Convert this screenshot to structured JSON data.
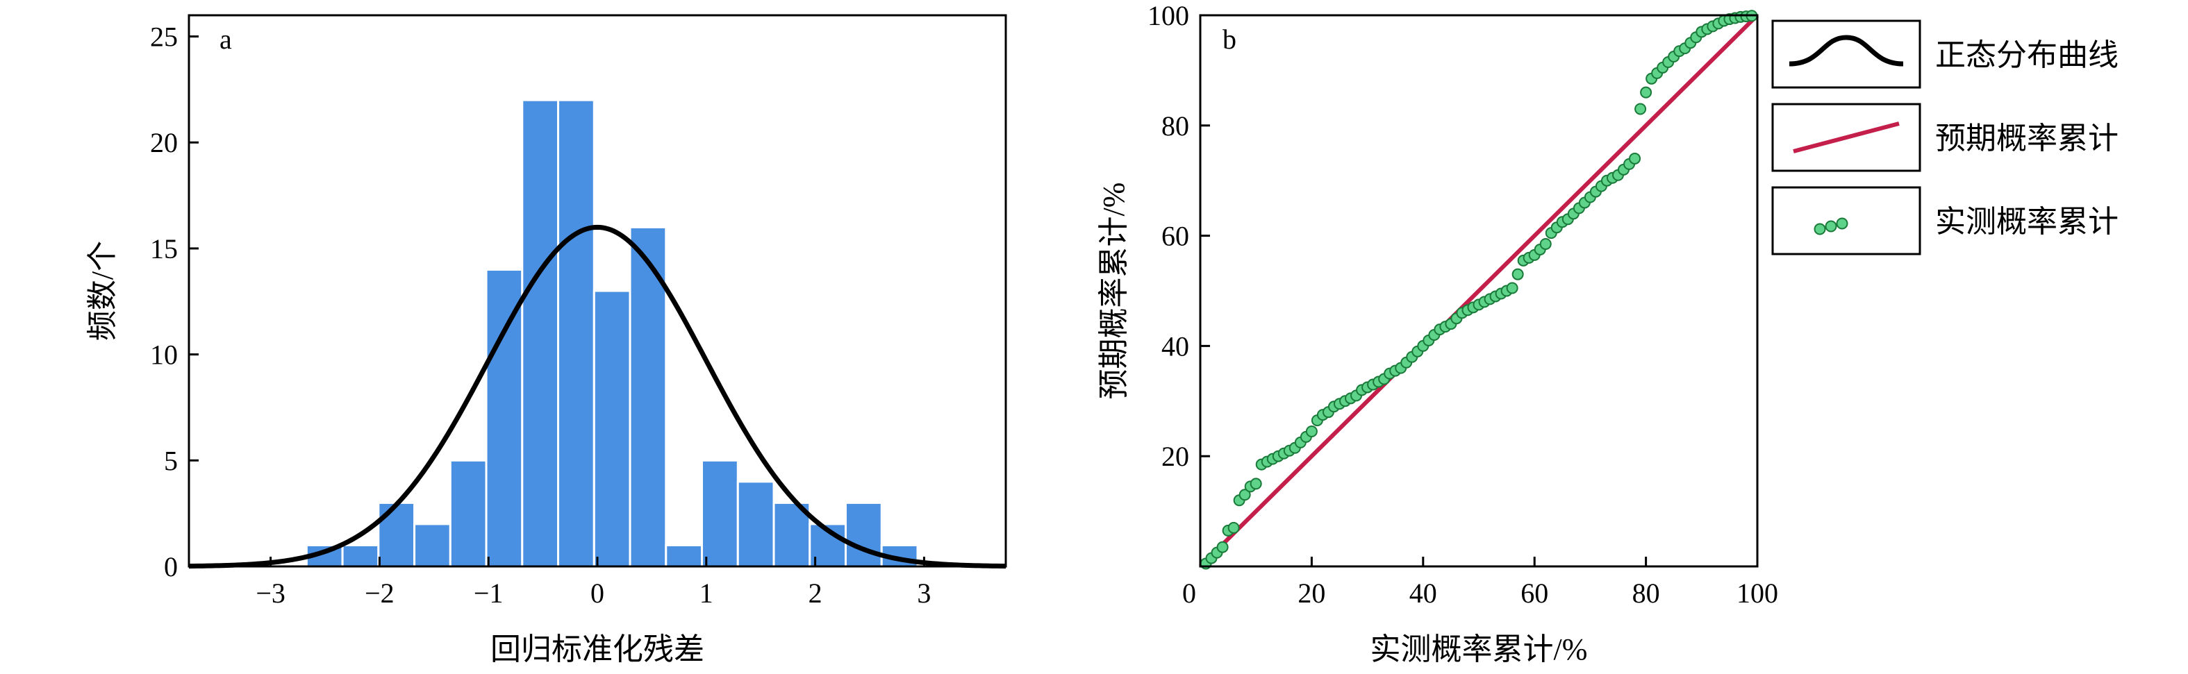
{
  "chart_data": [
    {
      "panel": "a",
      "type": "bar",
      "title": "",
      "xlabel": "回归标准化残差",
      "ylabel": "频数/个",
      "xlim": [
        -3.75,
        3.75
      ],
      "ylim": [
        0,
        26
      ],
      "xticks": [
        -3,
        -2,
        -1,
        0,
        1,
        2,
        3
      ],
      "xtick_labels": [
        "−3",
        "−2",
        "−1",
        "0",
        "1",
        "2",
        "3"
      ],
      "yticks": [
        0,
        5,
        10,
        15,
        20,
        25
      ],
      "ytick_labels": [
        "0",
        "5",
        "10",
        "15",
        "20",
        "25"
      ],
      "bin_width": 0.33,
      "bin_starts": [
        -2.67,
        -2.34,
        -2.01,
        -1.68,
        -1.35,
        -1.02,
        -0.69,
        -0.36,
        -0.03,
        0.3,
        0.63,
        0.96,
        1.29,
        1.62,
        1.95,
        2.28,
        2.61
      ],
      "values": [
        1,
        1,
        3,
        2,
        5,
        14,
        22,
        22,
        13,
        16,
        1,
        5,
        4,
        3,
        2,
        3,
        1
      ],
      "bar_color": "#4a90e2",
      "curve": {
        "type": "normal",
        "mean": 0,
        "sd": 1,
        "peak": 16,
        "color": "#000000"
      },
      "grid": false
    },
    {
      "panel": "b",
      "type": "scatter",
      "title": "",
      "xlabel": "实测概率累计/%",
      "ylabel": "预期概率累计/%",
      "xlim": [
        0,
        100
      ],
      "ylim": [
        0,
        100
      ],
      "xticks": [
        0,
        20,
        40,
        60,
        80,
        100
      ],
      "xtick_labels": [
        "0",
        "20",
        "40",
        "60",
        "80",
        "100"
      ],
      "yticks": [
        20,
        40,
        60,
        80,
        100
      ],
      "ytick_labels": [
        "20",
        "40",
        "60",
        "80",
        "100"
      ],
      "reference_line": {
        "x": [
          0,
          100
        ],
        "y": [
          0,
          100
        ],
        "color": "#c41e4a"
      },
      "point_color": "#5fd38a",
      "point_edge_color": "#1a7a3a",
      "points": {
        "x": [
          1,
          2,
          3,
          4,
          5,
          6,
          7,
          8,
          9,
          10,
          11,
          12,
          13,
          14,
          15,
          16,
          17,
          18,
          19,
          20,
          21,
          22,
          23,
          24,
          25,
          26,
          27,
          28,
          29,
          30,
          31,
          32,
          33,
          34,
          35,
          36,
          37,
          38,
          39,
          40,
          41,
          42,
          43,
          44,
          45,
          46,
          47,
          48,
          49,
          50,
          51,
          52,
          53,
          54,
          55,
          56,
          57,
          58,
          59,
          60,
          61,
          62,
          63,
          64,
          65,
          66,
          67,
          68,
          69,
          70,
          71,
          72,
          73,
          74,
          75,
          76,
          77,
          78,
          79,
          80,
          81,
          82,
          83,
          84,
          85,
          86,
          87,
          88,
          89,
          90,
          91,
          92,
          93,
          94,
          95,
          96,
          97,
          98,
          99
        ],
        "y": [
          0.5,
          1.5,
          2.5,
          3.5,
          6.5,
          7,
          12,
          13,
          14.5,
          15,
          18.5,
          19,
          19.5,
          20,
          20.5,
          21,
          21.5,
          22.5,
          23.5,
          24.5,
          26.5,
          27.5,
          28,
          29,
          29.5,
          30,
          30.5,
          31,
          32,
          32.5,
          33,
          33.5,
          34,
          35,
          35.5,
          36,
          37,
          38,
          39,
          40,
          41,
          42,
          43,
          43.5,
          44,
          45,
          46,
          46.5,
          47,
          47.5,
          48,
          48.5,
          49,
          49.5,
          50,
          50.5,
          53,
          55.5,
          56,
          56.5,
          57.5,
          58.5,
          60.5,
          61.5,
          62.5,
          63,
          64,
          65,
          66,
          67,
          68,
          69,
          70,
          70.5,
          71,
          72,
          73,
          74,
          83,
          86,
          88.5,
          89.5,
          90.5,
          91.5,
          92.5,
          93.5,
          94,
          95,
          96,
          97,
          97.5,
          98,
          98.5,
          99,
          99.3,
          99.5,
          99.7,
          99.8,
          99.9
        ]
      },
      "legend": {
        "placement": "outside-right",
        "entries": [
          {
            "label": "正态分布曲线",
            "symbol": "curve",
            "color": "#000000"
          },
          {
            "label": "预期概率累计",
            "symbol": "line",
            "color": "#c41e4a"
          },
          {
            "label": "实测概率累计",
            "symbol": "points",
            "color": "#5fd38a"
          }
        ]
      },
      "grid": false
    }
  ]
}
